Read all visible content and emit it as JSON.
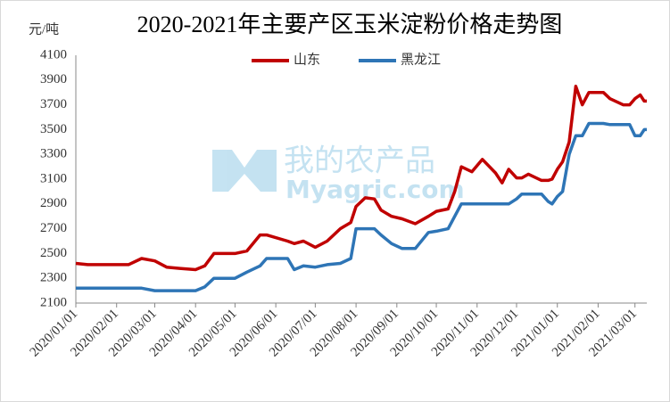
{
  "chart_data": {
    "type": "line",
    "title": "2020-2021年主要产区玉米淀粉价格走势图",
    "y_label": "元/吨",
    "watermark": {
      "cn": "我的农产品",
      "en": "Myagric.com"
    },
    "x": [
      "2020/01/01",
      "2020/01/10",
      "2020/02/10",
      "2020/02/20",
      "2020/03/01",
      "2020/03/10",
      "2020/03/20",
      "2020/04/01",
      "2020/04/08",
      "2020/04/15",
      "2020/05/01",
      "2020/05/10",
      "2020/05/20",
      "2020/05/25",
      "2020/06/10",
      "2020/06/15",
      "2020/06/22",
      "2020/07/01",
      "2020/07/10",
      "2020/07/20",
      "2020/07/28",
      "2020/08/01",
      "2020/08/08",
      "2020/08/15",
      "2020/08/20",
      "2020/08/28",
      "2020/09/05",
      "2020/09/15",
      "2020/09/25",
      "2020/10/01",
      "2020/10/10",
      "2020/10/15",
      "2020/10/20",
      "2020/10/28",
      "2020/11/05",
      "2020/11/15",
      "2020/11/20",
      "2020/11/25",
      "2020/12/01",
      "2020/12/05",
      "2020/12/10",
      "2020/12/20",
      "2020/12/25",
      "2020/12/28",
      "2021/01/01",
      "2021/01/05",
      "2021/01/10",
      "2021/01/15",
      "2021/01/20",
      "2021/01/25",
      "2021/02/05",
      "2021/02/10",
      "2021/02/20",
      "2021/02/25",
      "2021/03/01",
      "2021/03/05",
      "2021/03/08",
      "2021/03/10"
    ],
    "series": [
      {
        "name": "山东",
        "color": "#c00000",
        "values": [
          2420,
          2410,
          2410,
          2460,
          2440,
          2390,
          2380,
          2370,
          2400,
          2500,
          2500,
          2520,
          2650,
          2650,
          2600,
          2580,
          2600,
          2550,
          2600,
          2700,
          2750,
          2880,
          2950,
          2940,
          2850,
          2800,
          2780,
          2740,
          2800,
          2840,
          2860,
          3000,
          3200,
          3160,
          3260,
          3150,
          3070,
          3180,
          3110,
          3110,
          3140,
          3090,
          3090,
          3100,
          3180,
          3240,
          3400,
          3850,
          3700,
          3800,
          3800,
          3750,
          3700,
          3700,
          3750,
          3780,
          3730,
          3730
        ]
      },
      {
        "name": "黑龙江",
        "color": "#2e75b6",
        "values": [
          2220,
          2220,
          2220,
          2220,
          2200,
          2200,
          2200,
          2200,
          2230,
          2300,
          2300,
          2350,
          2400,
          2460,
          2460,
          2370,
          2400,
          2390,
          2410,
          2420,
          2460,
          2700,
          2700,
          2700,
          2650,
          2580,
          2540,
          2540,
          2670,
          2680,
          2700,
          2800,
          2900,
          2900,
          2900,
          2900,
          2900,
          2900,
          2940,
          2980,
          2980,
          2980,
          2920,
          2900,
          2960,
          3000,
          3300,
          3450,
          3450,
          3550,
          3550,
          3540,
          3540,
          3540,
          3450,
          3450,
          3500,
          3500
        ]
      }
    ],
    "xlim": [
      "2020/01/01",
      "2021/03/10"
    ],
    "xticks": [
      "2020/01/01",
      "2020/02/01",
      "2020/03/01",
      "2020/04/01",
      "2020/05/01",
      "2020/06/01",
      "2020/07/01",
      "2020/08/01",
      "2020/09/01",
      "2020/10/01",
      "2020/11/01",
      "2020/12/01",
      "2021/01/01",
      "2021/02/01",
      "2021/03/01"
    ],
    "ylim": [
      2100,
      4100
    ],
    "yticks": [
      2100,
      2300,
      2500,
      2700,
      2900,
      3100,
      3300,
      3500,
      3700,
      3900,
      4100
    ],
    "grid": false,
    "legend": "top"
  }
}
